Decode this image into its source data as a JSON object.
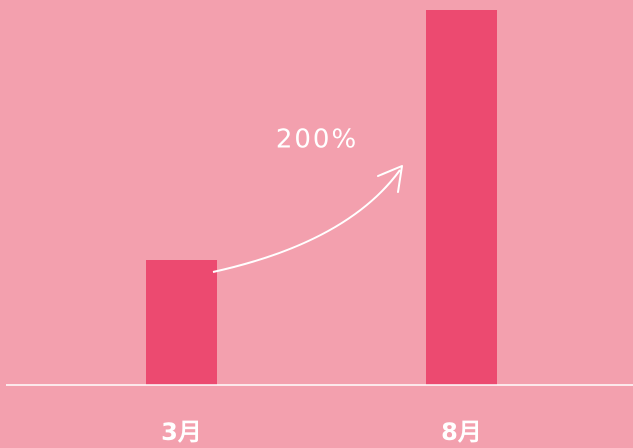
{
  "chart_data": {
    "type": "bar",
    "categories": [
      "3月",
      "8月"
    ],
    "values": [
      100,
      300
    ],
    "color": "#ec4a70",
    "ylim": [
      0,
      300
    ],
    "annotation": "200%"
  }
}
